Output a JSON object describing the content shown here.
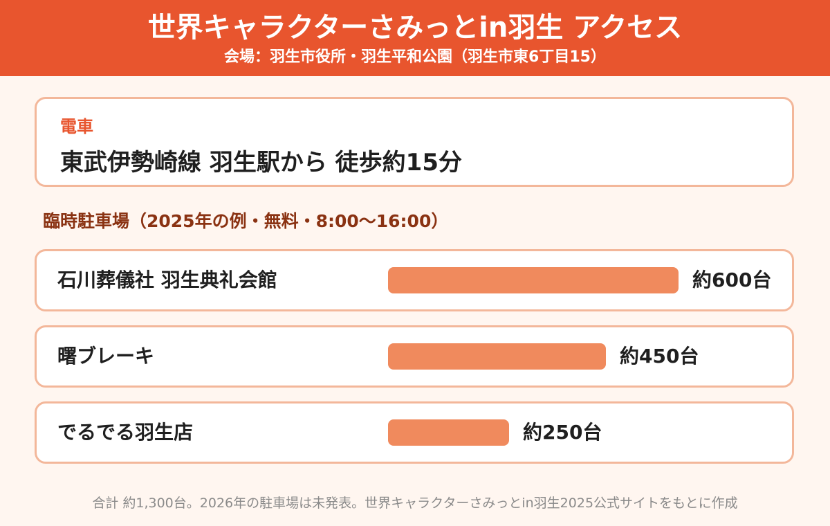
{
  "header": {
    "title": "世界キャラクターさみっとin羽生 アクセス",
    "subtitle": "会場：羽生市役所・羽生平和公園（羽生市東6丁目15）"
  },
  "train": {
    "label": "電車",
    "description": "東武伊勢崎線 羽生駅から 徒歩約15分"
  },
  "parking": {
    "heading": "臨時駐車場（2025年の例・無料・8:00〜16:00）"
  },
  "chart_data": {
    "type": "bar",
    "orientation": "horizontal",
    "categories": [
      "石川葬儀社 羽生典礼会館",
      "曙ブレーキ",
      "でるでる羽生店"
    ],
    "values": [
      600,
      450,
      250
    ],
    "value_labels": [
      "約600台",
      "約450台",
      "約250台"
    ],
    "unit": "台",
    "xlim": [
      0,
      600
    ]
  },
  "footer": {
    "note": "合計 約1,300台。2026年の駐車場は未発表。世界キャラクターさみっとin羽生2025公式サイトをもとに作成"
  },
  "colors": {
    "header_bg": "#e8552e",
    "bar": "#f08a5d",
    "card_border": "#f3b79a",
    "heading": "#8a3212",
    "background": "#fff6f0"
  }
}
